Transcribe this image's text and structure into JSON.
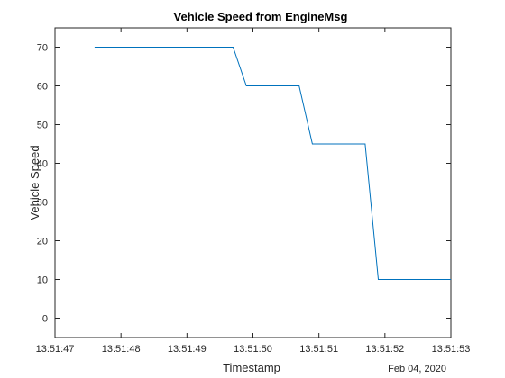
{
  "chart_data": {
    "type": "line",
    "title": "Vehicle Speed from EngineMsg",
    "xlabel": "Timestamp",
    "ylabel": "Vehicle Speed",
    "date_label": "Feb 04, 2020",
    "xlim": [
      "13:51:47",
      "13:51:53"
    ],
    "ylim": [
      -5,
      75
    ],
    "x_ticks": [
      "13:51:47",
      "13:51:48",
      "13:51:49",
      "13:51:50",
      "13:51:51",
      "13:51:52",
      "13:51:53"
    ],
    "y_ticks": [
      0,
      10,
      20,
      30,
      40,
      50,
      60,
      70
    ],
    "grid": false,
    "series": [
      {
        "color": "#0072BD",
        "points": [
          {
            "x": "13:51:47.6",
            "y": 70
          },
          {
            "x": "13:51:49.7",
            "y": 70
          },
          {
            "x": "13:51:49.9",
            "y": 60
          },
          {
            "x": "13:51:50.7",
            "y": 60
          },
          {
            "x": "13:51:50.9",
            "y": 45
          },
          {
            "x": "13:51:51.7",
            "y": 45
          },
          {
            "x": "13:51:51.9",
            "y": 10
          },
          {
            "x": "13:51:53.0",
            "y": 10
          }
        ]
      }
    ]
  }
}
